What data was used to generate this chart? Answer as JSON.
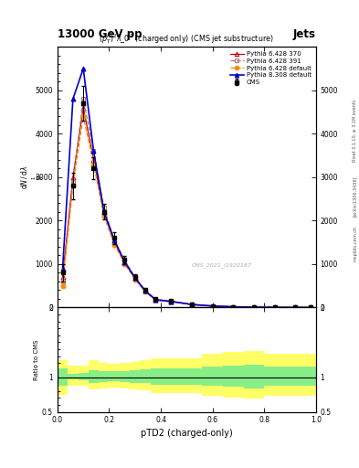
{
  "title_top": "13000 GeV pp",
  "title_right": "Jets",
  "plot_title": "$(p_T^P)^2\\lambda\\_0^2$ (charged only) (CMS jet substructure)",
  "watermark": "CMS_2021_I1920187",
  "xlabel": "pTD2 (charged-only)",
  "ylabel_ratio": "Ratio to CMS",
  "rivet_label": "Rivet 3.1.10, ≥ 3.1M events",
  "arxiv_label": "[arXiv:1306.3436]",
  "mcplots_label": "mcplots.cern.ch",
  "x_bins": [
    0.0,
    0.04,
    0.08,
    0.12,
    0.16,
    0.2,
    0.24,
    0.28,
    0.32,
    0.36,
    0.4,
    0.48,
    0.56,
    0.64,
    0.72,
    0.8,
    0.88,
    0.96,
    1.0
  ],
  "cms_data": [
    800,
    2800,
    4700,
    3200,
    2200,
    1600,
    1100,
    700,
    400,
    200,
    150,
    80,
    40,
    20,
    10,
    5,
    3,
    2
  ],
  "cms_errors": [
    200,
    300,
    400,
    250,
    180,
    130,
    90,
    60,
    35,
    20,
    15,
    10,
    6,
    4,
    2,
    1,
    1,
    0.5
  ],
  "py6_370": [
    700,
    3000,
    4600,
    3400,
    2200,
    1500,
    1050,
    680,
    380,
    180,
    140,
    70,
    35,
    18,
    9,
    4,
    2.5,
    1.5
  ],
  "py6_391": [
    600,
    2900,
    4800,
    3600,
    2300,
    1550,
    1100,
    700,
    400,
    190,
    145,
    75,
    38,
    19,
    10,
    5,
    3,
    2
  ],
  "py6_def": [
    500,
    2800,
    4400,
    3300,
    2100,
    1450,
    1000,
    650,
    360,
    170,
    130,
    65,
    32,
    16,
    8,
    4,
    2,
    1.5
  ],
  "py8_def": [
    900,
    4800,
    5500,
    3600,
    2200,
    1550,
    1050,
    680,
    380,
    180,
    140,
    70,
    35,
    18,
    9,
    4,
    2,
    1.5
  ],
  "ratio_green_lo": [
    0.87,
    0.97,
    0.96,
    0.92,
    0.93,
    0.94,
    0.93,
    0.92,
    0.91,
    0.89,
    0.89,
    0.89,
    0.87,
    0.86,
    0.84,
    0.87,
    0.87,
    0.87
  ],
  "ratio_green_hi": [
    1.13,
    1.04,
    1.06,
    1.1,
    1.09,
    1.08,
    1.09,
    1.1,
    1.11,
    1.13,
    1.13,
    1.13,
    1.15,
    1.16,
    1.18,
    1.15,
    1.15,
    1.15
  ],
  "ratio_yellow_lo": [
    0.75,
    0.87,
    0.87,
    0.82,
    0.84,
    0.85,
    0.83,
    0.82,
    0.81,
    0.77,
    0.77,
    0.77,
    0.73,
    0.71,
    0.69,
    0.73,
    0.73,
    0.73
  ],
  "ratio_yellow_hi": [
    1.25,
    1.17,
    1.17,
    1.24,
    1.21,
    1.19,
    1.21,
    1.22,
    1.24,
    1.27,
    1.27,
    1.27,
    1.33,
    1.36,
    1.38,
    1.33,
    1.33,
    1.33
  ],
  "color_py6_370": "#cc0000",
  "color_py6_391": "#aa7788",
  "color_py6_def": "#ff8800",
  "color_py8_def": "#0000cc",
  "ylim_main": [
    0,
    6000
  ],
  "ylim_ratio": [
    0.5,
    2.0
  ],
  "xlim": [
    0.0,
    1.0
  ],
  "yticks_main": [
    0,
    1000,
    2000,
    3000,
    4000,
    5000
  ],
  "yticks_ratio": [
    0.5,
    1.0,
    2.0
  ]
}
